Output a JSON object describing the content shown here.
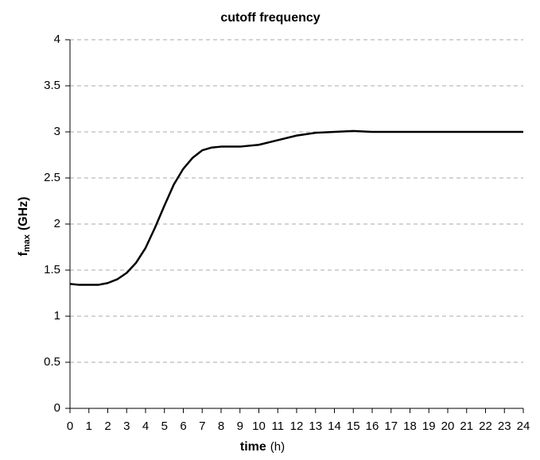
{
  "chart_data": {
    "type": "line",
    "title": "cutoff frequency",
    "xlabel": [
      "time",
      "(h)"
    ],
    "ylabel": [
      "f",
      "max",
      "(GHz)"
    ],
    "x": [
      0,
      0.5,
      1,
      1.5,
      2,
      2.5,
      3,
      3.5,
      4,
      4.5,
      5,
      5.5,
      6,
      6.5,
      7,
      7.5,
      8,
      9,
      10,
      11,
      12,
      13,
      14,
      15,
      16,
      18,
      20,
      22,
      24
    ],
    "series": [
      {
        "name": "fmax",
        "color": "#000000",
        "values": [
          1.35,
          1.34,
          1.34,
          1.34,
          1.36,
          1.4,
          1.47,
          1.58,
          1.74,
          1.96,
          2.2,
          2.43,
          2.6,
          2.72,
          2.8,
          2.83,
          2.84,
          2.84,
          2.86,
          2.91,
          2.96,
          2.99,
          3.0,
          3.01,
          3.0,
          3.0,
          3.0,
          3.0,
          3.0
        ]
      }
    ],
    "xlim": [
      0,
      24
    ],
    "xticks": [
      0,
      1,
      2,
      3,
      4,
      5,
      6,
      7,
      8,
      9,
      10,
      11,
      12,
      13,
      14,
      15,
      16,
      17,
      18,
      19,
      20,
      21,
      22,
      23,
      24
    ],
    "ylim": [
      0,
      4
    ],
    "yticks": [
      0,
      0.5,
      1,
      1.5,
      2,
      2.5,
      3,
      3.5,
      4
    ],
    "grid": true
  }
}
